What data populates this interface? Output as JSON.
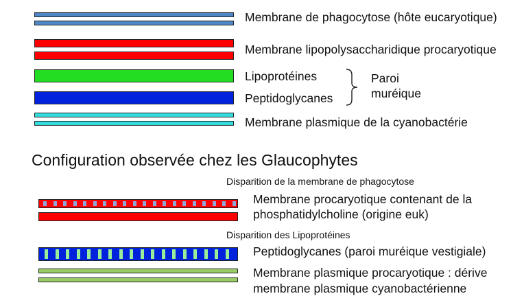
{
  "top_section": {
    "labels": {
      "phagocytose": "Membrane de phagocytose (hôte eucaryotique)",
      "lps": "Membrane lipopolysaccharidique procaryotique",
      "lipoproteines": "Lipoprotéines",
      "peptidoglycanes": "Peptidoglycanes",
      "paroi_line1": "Paroi",
      "paroi_line2": "muréique",
      "plasmique": "Membrane plasmique de la cyanobactérie"
    },
    "colors": {
      "phagocytose": "#4f86c6",
      "lps": "#ff0000",
      "lipoproteines": "#22dd22",
      "peptidoglycanes": "#0022dd",
      "plasmique": "#33dddd"
    }
  },
  "heading": "Configuration observée chez les Glaucophytes",
  "bottom_section": {
    "note_1": "Disparition de la membrane de phagocytose",
    "label_1_line1": "Membrane procaryotique contenant de la",
    "label_1_line2": "phosphatidylcholine (origine euk)",
    "note_2": "Disparition des Lipoprotéines",
    "label_2": "Peptidoglycanes (paroi muréique vestigiale)",
    "label_3_line1": "Membrane plasmique procaryotique : dérive",
    "label_3_line2": "membrane plasmique cyanobactérienne",
    "colors": {
      "membrane_red": "#ff0000",
      "membrane_insert": "#8fa8d8",
      "peptidoglycan_blue": "#0022dd",
      "peptidoglycan_insert": "#99ee99",
      "plasmique_green": "#99cc66"
    }
  }
}
